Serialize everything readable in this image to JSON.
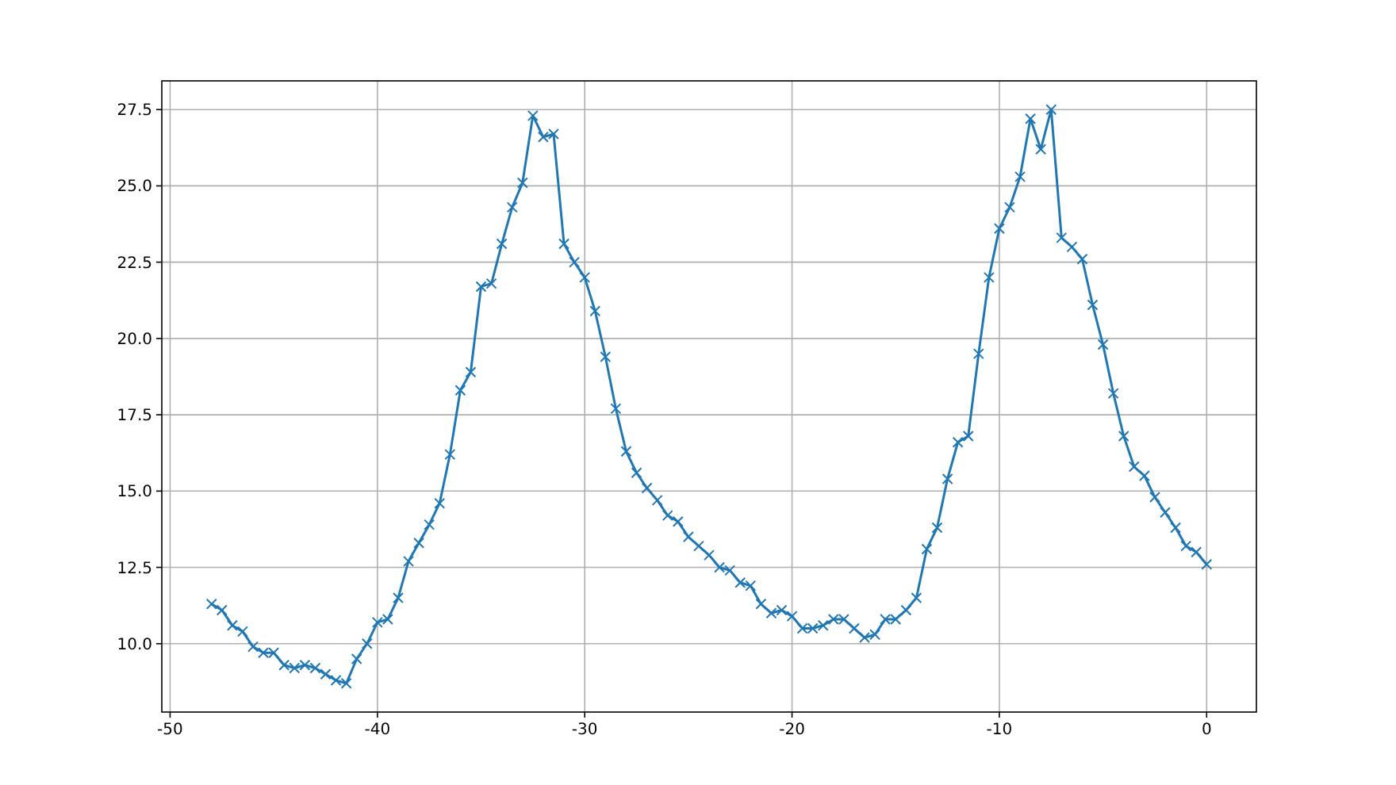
{
  "chart_data": {
    "type": "line",
    "marker": "cross",
    "grid": true,
    "x": [
      -48,
      -47.5,
      -47,
      -46.5,
      -46,
      -45.5,
      -45,
      -44.5,
      -44,
      -43.5,
      -43,
      -42.5,
      -42,
      -41.5,
      -41,
      -40.5,
      -40,
      -39.5,
      -39,
      -38.5,
      -38,
      -37.5,
      -37,
      -36.5,
      -36,
      -35.5,
      -35,
      -34.5,
      -34,
      -33.5,
      -33,
      -32.5,
      -32,
      -31.5,
      -31,
      -30.5,
      -30,
      -29.5,
      -29,
      -28.5,
      -28,
      -27.5,
      -27,
      -26.5,
      -26,
      -25.5,
      -25,
      -24.5,
      -24,
      -23.5,
      -23,
      -22.5,
      -22,
      -21.5,
      -21,
      -20.5,
      -20,
      -19.5,
      -19,
      -18.5,
      -18,
      -17.5,
      -17,
      -16.5,
      -16,
      -15.5,
      -15,
      -14.5,
      -14,
      -13.5,
      -13,
      -12.5,
      -12,
      -11.5,
      -11,
      -10.5,
      -10,
      -9.5,
      -9,
      -8.5,
      -8,
      -7.5,
      -7,
      -6.5,
      -6,
      -5.5,
      -5,
      -4.5,
      -4,
      -3.5,
      -3,
      -2.5,
      -2,
      -1.5,
      -1,
      -0.5,
      0
    ],
    "series": [
      {
        "color": "#1f77b4",
        "values": [
          11.3,
          11.1,
          10.6,
          10.4,
          9.9,
          9.7,
          9.7,
          9.3,
          9.2,
          9.3,
          9.2,
          9.0,
          8.8,
          8.7,
          9.5,
          10.0,
          10.7,
          10.8,
          11.5,
          12.7,
          13.3,
          13.9,
          14.6,
          16.2,
          18.3,
          18.9,
          21.7,
          21.8,
          23.1,
          24.3,
          25.1,
          27.3,
          26.6,
          26.7,
          23.1,
          22.5,
          22.0,
          20.9,
          19.4,
          17.7,
          16.3,
          15.6,
          15.1,
          14.7,
          14.2,
          14.0,
          13.5,
          13.2,
          12.9,
          12.5,
          12.4,
          12.0,
          11.9,
          11.3,
          11.0,
          11.1,
          10.9,
          10.5,
          10.5,
          10.6,
          10.8,
          10.8,
          10.5,
          10.2,
          10.3,
          10.8,
          10.8,
          11.1,
          11.5,
          13.1,
          13.8,
          15.4,
          16.6,
          16.8,
          19.5,
          22.0,
          23.6,
          24.3,
          25.3,
          27.2,
          26.2,
          27.5,
          23.3,
          23.0,
          22.6,
          21.1,
          19.8,
          18.2,
          16.8,
          15.8,
          15.5,
          14.8,
          14.3,
          13.8,
          13.2,
          13.0,
          12.6
        ]
      }
    ],
    "xlim": [
      -50.4,
      2.4
    ],
    "xticks": [
      -50,
      -40,
      -30,
      -20,
      -10,
      0
    ],
    "ylim": [
      7.76,
      28.44
    ],
    "yticks": [
      {
        "value": 10,
        "label": "10.0"
      },
      {
        "value": 12.5,
        "label": "12.5"
      },
      {
        "value": 15,
        "label": "15.0"
      },
      {
        "value": 17.5,
        "label": "17.5"
      },
      {
        "value": 20,
        "label": "20.0"
      },
      {
        "value": 22.5,
        "label": "22.5"
      },
      {
        "value": 25,
        "label": "25.0"
      },
      {
        "value": 27.5,
        "label": "27.5"
      }
    ]
  }
}
